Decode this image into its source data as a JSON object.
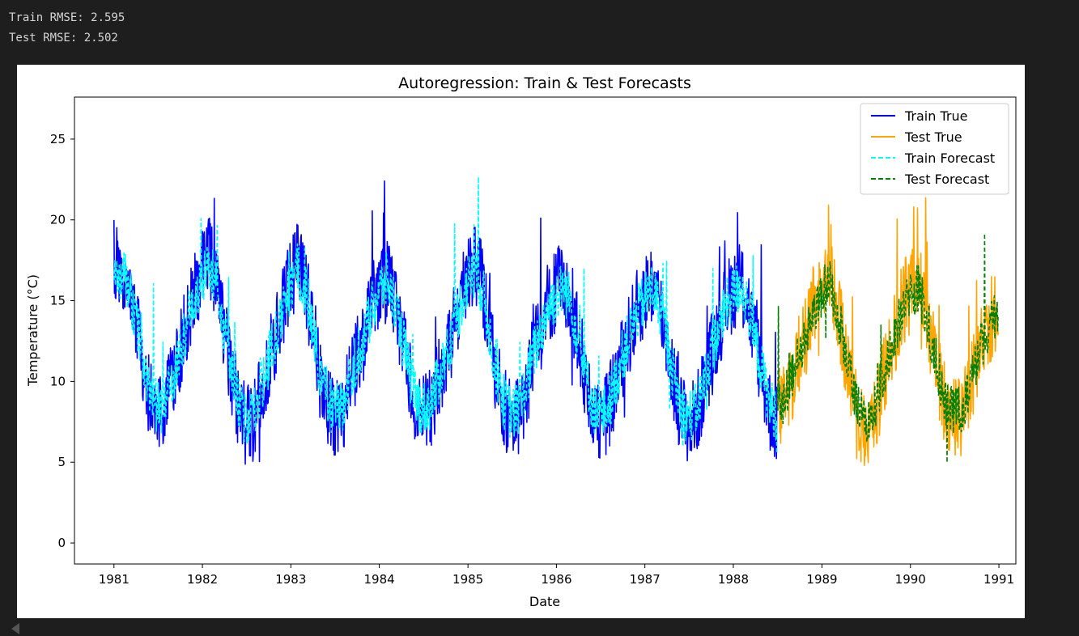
{
  "output": {
    "lines": [
      "Train RMSE: 2.595",
      "Test RMSE: 2.502"
    ]
  },
  "chart_data": {
    "type": "line",
    "title": "Autoregression: Train & Test Forecasts",
    "xlabel": "Date",
    "ylabel": "Temperature (°C)",
    "xlim": [
      "1980-07-22",
      "1991-03-12"
    ],
    "ylim": [
      -1.3,
      27.6
    ],
    "x_ticks": [
      "1981",
      "1982",
      "1983",
      "1984",
      "1985",
      "1986",
      "1987",
      "1988",
      "1989",
      "1990",
      "1991"
    ],
    "y_ticks": [
      0,
      5,
      10,
      15,
      20,
      25
    ],
    "grid": false,
    "legend_position": "top-right",
    "series": [
      {
        "name": "Train True",
        "color": "#0000ff",
        "style": "solid",
        "x": [
          "1981-01-01",
          "1981-02-01",
          "1981-03-01",
          "1981-04-01",
          "1981-05-01",
          "1981-06-01",
          "1981-07-01",
          "1981-08-01",
          "1981-09-01",
          "1981-10-01",
          "1981-11-01",
          "1981-12-01",
          "1982-01-01",
          "1982-02-01",
          "1982-03-01",
          "1982-04-01",
          "1982-05-01",
          "1982-06-01",
          "1982-07-01",
          "1982-08-01",
          "1982-09-01",
          "1982-10-01",
          "1982-11-01",
          "1982-12-01",
          "1983-01-01",
          "1983-02-01",
          "1983-03-01",
          "1983-04-01",
          "1983-05-01",
          "1983-06-01",
          "1983-07-01",
          "1983-08-01",
          "1983-09-01",
          "1983-10-01",
          "1983-11-01",
          "1983-12-01",
          "1984-01-01",
          "1984-02-01",
          "1984-03-01",
          "1984-04-01",
          "1984-05-01",
          "1984-06-01",
          "1984-07-01",
          "1984-08-01",
          "1984-09-01",
          "1984-10-01",
          "1984-11-01",
          "1984-12-01",
          "1985-01-01",
          "1985-02-01",
          "1985-03-01",
          "1985-04-01",
          "1985-05-01",
          "1985-06-01",
          "1985-07-01",
          "1985-08-01",
          "1985-09-01",
          "1985-10-01",
          "1985-11-01",
          "1985-12-01",
          "1986-01-01",
          "1986-02-01",
          "1986-03-01",
          "1986-04-01",
          "1986-05-01",
          "1986-06-01",
          "1986-07-01",
          "1986-08-01",
          "1986-09-01",
          "1986-10-01",
          "1986-11-01",
          "1986-12-01",
          "1987-01-01",
          "1987-02-01",
          "1987-03-01",
          "1987-04-01",
          "1987-05-01",
          "1987-06-01",
          "1987-07-01",
          "1987-08-01",
          "1987-09-01",
          "1987-10-01",
          "1987-11-01",
          "1987-12-01",
          "1988-01-01",
          "1988-02-01",
          "1988-03-01",
          "1988-04-01",
          "1988-05-01",
          "1988-06-01",
          "1988-07-01"
        ],
        "y": [
          17.7,
          16.8,
          16.1,
          13.6,
          11.2,
          8.6,
          7.9,
          8.4,
          10.2,
          11.8,
          13.8,
          15.6,
          16.9,
          17.8,
          15.9,
          13.1,
          10.5,
          8.1,
          7.2,
          7.6,
          9.4,
          11.2,
          13.0,
          14.8,
          16.2,
          17.5,
          16.0,
          13.4,
          10.3,
          8.4,
          7.7,
          8.0,
          9.7,
          11.4,
          12.8,
          14.6,
          15.9,
          16.6,
          15.2,
          12.9,
          10.4,
          8.3,
          7.9,
          8.4,
          9.9,
          11.6,
          13.2,
          15.1,
          16.6,
          17.3,
          15.9,
          12.8,
          10.1,
          8.2,
          7.6,
          7.9,
          9.7,
          11.8,
          13.4,
          14.9,
          15.6,
          16.2,
          15.1,
          12.6,
          10.2,
          8.0,
          7.3,
          8.1,
          9.8,
          11.5,
          13.1,
          14.4,
          15.4,
          16.1,
          14.8,
          12.7,
          10.0,
          7.9,
          7.4,
          7.8,
          9.6,
          11.6,
          13.3,
          14.8,
          15.7,
          16.3,
          14.9,
          12.4,
          10.2,
          8.1,
          7.4
        ]
      },
      {
        "name": "Test True",
        "color": "#ffa500",
        "style": "solid",
        "x": [
          "1988-07-01",
          "1988-08-01",
          "1988-09-01",
          "1988-10-01",
          "1988-11-01",
          "1988-12-01",
          "1989-01-01",
          "1989-02-01",
          "1989-03-01",
          "1989-04-01",
          "1989-05-01",
          "1989-06-01",
          "1989-07-01",
          "1989-08-01",
          "1989-09-01",
          "1989-10-01",
          "1989-11-01",
          "1989-12-01",
          "1990-01-01",
          "1990-02-01",
          "1990-03-01",
          "1990-04-01",
          "1990-05-01",
          "1990-06-01",
          "1990-07-01",
          "1990-08-01",
          "1990-09-01",
          "1990-10-01",
          "1990-11-01",
          "1990-12-01",
          "1990-12-31"
        ],
        "y": [
          8.2,
          8.6,
          10.1,
          11.8,
          13.2,
          14.9,
          15.8,
          16.4,
          14.8,
          12.3,
          9.8,
          7.8,
          7.1,
          7.7,
          9.6,
          11.3,
          13.1,
          14.8,
          15.6,
          16.1,
          14.6,
          12.2,
          9.9,
          8.2,
          7.6,
          7.9,
          9.5,
          11.2,
          12.8,
          13.9,
          14.2
        ]
      },
      {
        "name": "Train Forecast",
        "color": "#00ffff",
        "style": "dashed",
        "x": [
          "1981-01-01",
          "1981-02-01",
          "1981-03-01",
          "1981-04-01",
          "1981-05-01",
          "1981-06-01",
          "1981-07-01",
          "1981-08-01",
          "1981-09-01",
          "1981-10-01",
          "1981-11-01",
          "1981-12-01",
          "1982-01-01",
          "1982-02-01",
          "1982-03-01",
          "1982-04-01",
          "1982-05-01",
          "1982-06-01",
          "1982-07-01",
          "1982-08-01",
          "1982-09-01",
          "1982-10-01",
          "1982-11-01",
          "1982-12-01",
          "1983-01-01",
          "1983-02-01",
          "1983-03-01",
          "1983-04-01",
          "1983-05-01",
          "1983-06-01",
          "1983-07-01",
          "1983-08-01",
          "1983-09-01",
          "1983-10-01",
          "1983-11-01",
          "1983-12-01",
          "1984-01-01",
          "1984-02-01",
          "1984-03-01",
          "1984-04-01",
          "1984-05-01",
          "1984-06-01",
          "1984-07-01",
          "1984-08-01",
          "1984-09-01",
          "1984-10-01",
          "1984-11-01",
          "1984-12-01",
          "1985-01-01",
          "1985-02-01",
          "1985-03-01",
          "1985-04-01",
          "1985-05-01",
          "1985-06-01",
          "1985-07-01",
          "1985-08-01",
          "1985-09-01",
          "1985-10-01",
          "1985-11-01",
          "1985-12-01",
          "1986-01-01",
          "1986-02-01",
          "1986-03-01",
          "1986-04-01",
          "1986-05-01",
          "1986-06-01",
          "1986-07-01",
          "1986-08-01",
          "1986-09-01",
          "1986-10-01",
          "1986-11-01",
          "1986-12-01",
          "1987-01-01",
          "1987-02-01",
          "1987-03-01",
          "1987-04-01",
          "1987-05-01",
          "1987-06-01",
          "1987-07-01",
          "1987-08-01",
          "1987-09-01",
          "1987-10-01",
          "1987-11-01",
          "1987-12-01",
          "1988-01-01",
          "1988-02-01",
          "1988-03-01",
          "1988-04-01",
          "1988-05-01",
          "1988-06-01",
          "1988-07-01"
        ],
        "y": [
          17.2,
          16.6,
          15.9,
          13.7,
          11.5,
          9.0,
          8.3,
          8.7,
          10.3,
          11.8,
          13.6,
          15.3,
          16.5,
          17.3,
          15.7,
          13.2,
          10.8,
          8.5,
          7.7,
          8.0,
          9.6,
          11.3,
          12.9,
          14.6,
          15.9,
          17.0,
          15.8,
          13.5,
          10.6,
          8.8,
          8.1,
          8.4,
          9.9,
          11.5,
          12.8,
          14.4,
          15.6,
          16.3,
          15.0,
          13.0,
          10.7,
          8.7,
          8.3,
          8.7,
          10.1,
          11.7,
          13.1,
          14.8,
          16.2,
          16.9,
          15.7,
          12.9,
          10.4,
          8.6,
          8.0,
          8.3,
          9.9,
          11.8,
          13.3,
          14.7,
          15.3,
          15.9,
          14.9,
          12.7,
          10.5,
          8.4,
          7.8,
          8.4,
          9.9,
          11.6,
          13.0,
          14.2,
          15.1,
          15.8,
          14.6,
          12.8,
          10.3,
          8.3,
          7.8,
          8.2,
          9.8,
          11.7,
          13.2,
          14.6,
          15.4,
          16.0,
          14.7,
          12.5,
          10.5,
          8.5,
          7.9
        ]
      },
      {
        "name": "Test Forecast",
        "color": "#008000",
        "style": "dashed",
        "x": [
          "1988-07-01",
          "1988-08-01",
          "1988-09-01",
          "1988-10-01",
          "1988-11-01",
          "1988-12-01",
          "1989-01-01",
          "1989-02-01",
          "1989-03-01",
          "1989-04-01",
          "1989-05-01",
          "1989-06-01",
          "1989-07-01",
          "1989-08-01",
          "1989-09-01",
          "1989-10-01",
          "1989-11-01",
          "1989-12-01",
          "1990-01-01",
          "1990-02-01",
          "1990-03-01",
          "1990-04-01",
          "1990-05-01",
          "1990-06-01",
          "1990-07-01",
          "1990-08-01",
          "1990-09-01",
          "1990-10-01",
          "1990-11-01",
          "1990-12-01",
          "1990-12-31"
        ],
        "y": [
          8.5,
          8.9,
          10.2,
          11.8,
          13.1,
          14.6,
          15.5,
          16.1,
          14.7,
          12.4,
          10.1,
          8.2,
          7.6,
          8.1,
          9.8,
          11.4,
          13.0,
          14.5,
          15.3,
          15.8,
          14.5,
          12.3,
          10.2,
          8.5,
          8.0,
          8.3,
          9.7,
          11.3,
          12.7,
          13.7,
          14.0
        ]
      }
    ]
  }
}
